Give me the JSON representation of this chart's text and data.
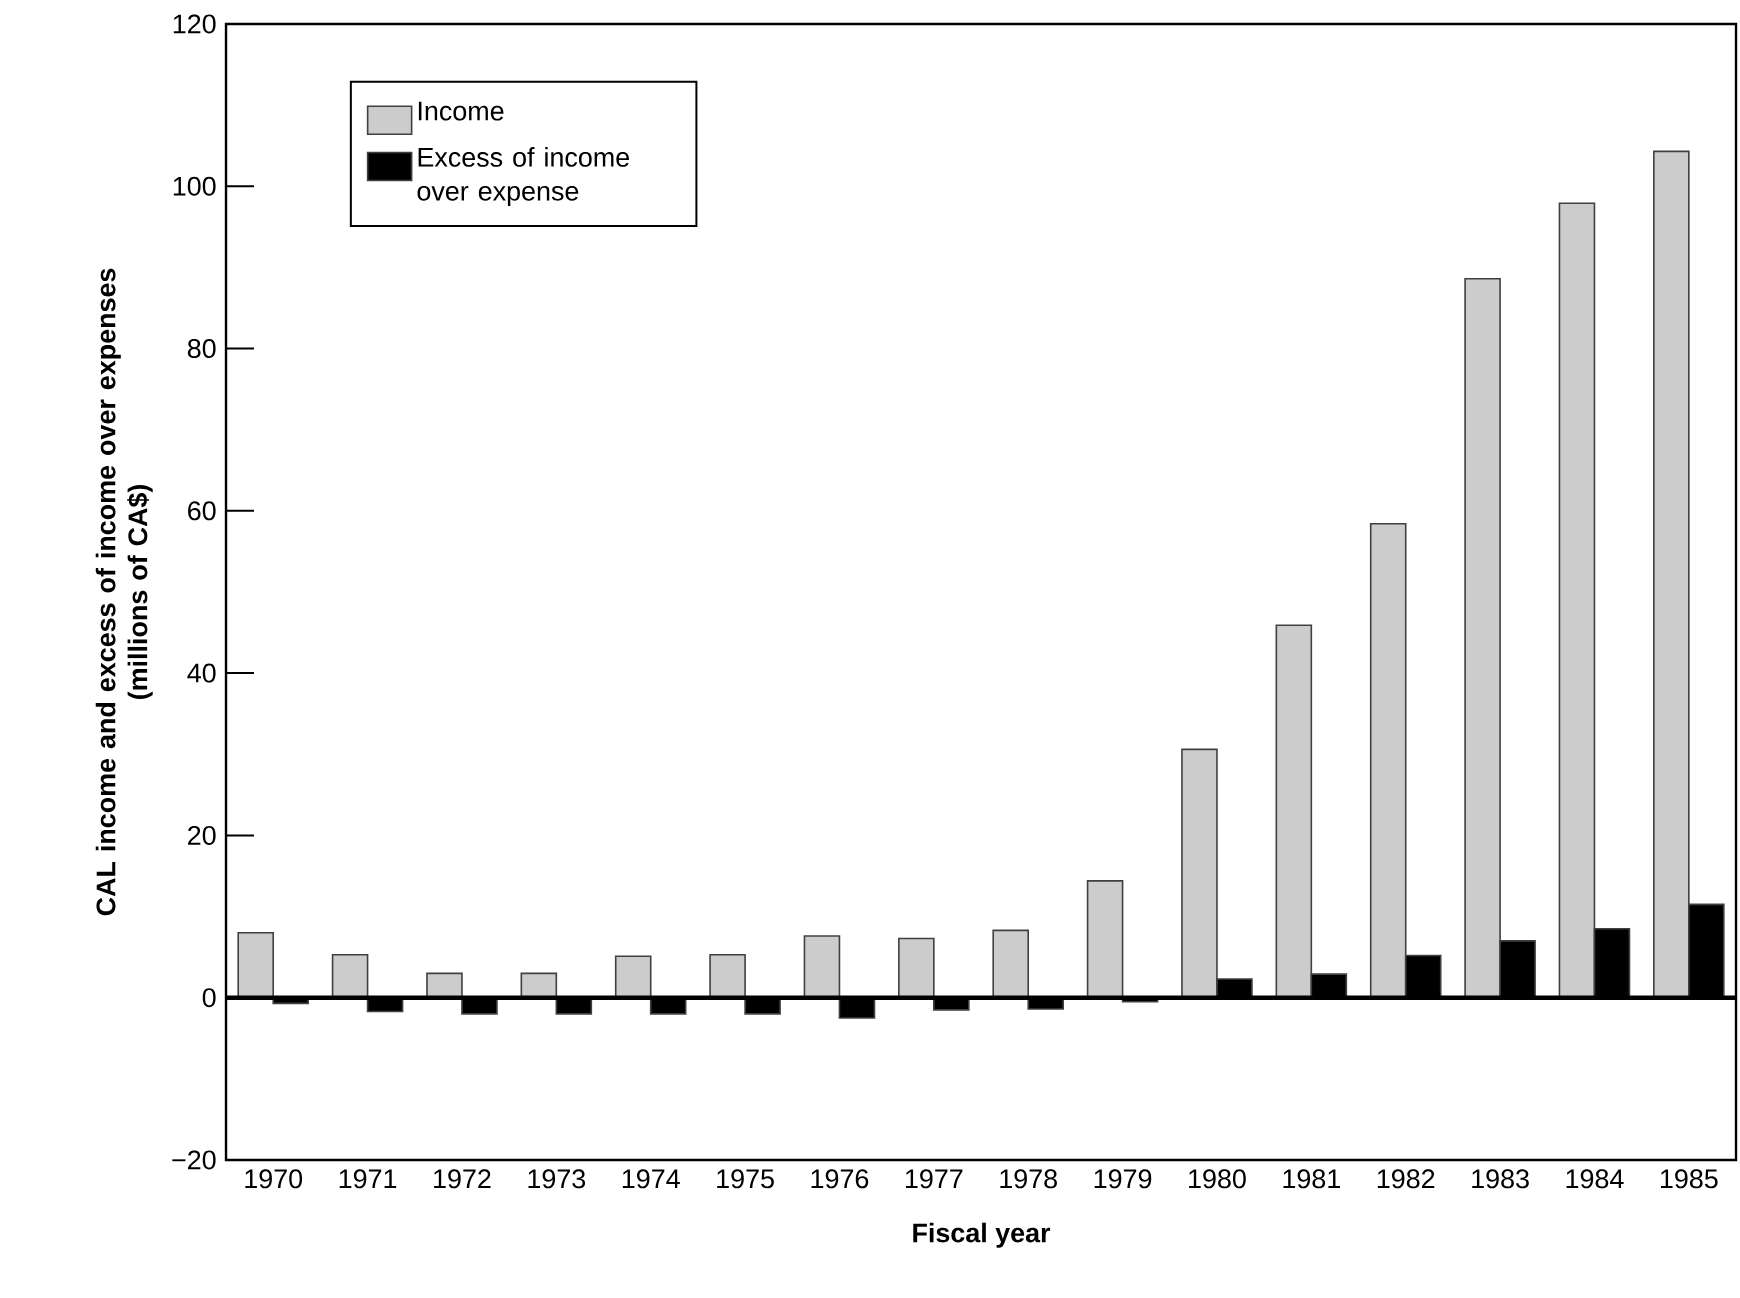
{
  "chart_data": {
    "type": "bar",
    "xlabel": "Fiscal year",
    "ylabel": "CAL income and excess of income over expenses\n(millions of CA$)",
    "categories": [
      "1970",
      "1971",
      "1972",
      "1973",
      "1974",
      "1975",
      "1976",
      "1977",
      "1978",
      "1979",
      "1980",
      "1981",
      "1982",
      "1983",
      "1984",
      "1985"
    ],
    "series": [
      {
        "name": "Income",
        "color": "#cccccc",
        "values": [
          8.0,
          5.3,
          3.0,
          3.0,
          5.1,
          5.3,
          7.6,
          7.3,
          8.3,
          14.4,
          30.6,
          45.9,
          58.4,
          88.6,
          97.9,
          104.3
        ]
      },
      {
        "name": "Excess of income over expense",
        "color": "#000000",
        "values": [
          -0.7,
          -1.7,
          -2.0,
          -2.0,
          -2.0,
          -2.0,
          -2.5,
          -1.5,
          -1.4,
          -0.5,
          2.3,
          2.9,
          5.2,
          7.0,
          8.5,
          11.5
        ]
      }
    ],
    "ylim": [
      -20,
      120
    ],
    "yticks": [
      {
        "value": -20,
        "label": "−20"
      },
      0,
      20,
      40,
      60,
      80,
      100,
      120
    ],
    "ref_lines": [
      {
        "axis": "y",
        "value": 0,
        "color": "#000000"
      }
    ],
    "legend": "top left",
    "grid": false
  }
}
